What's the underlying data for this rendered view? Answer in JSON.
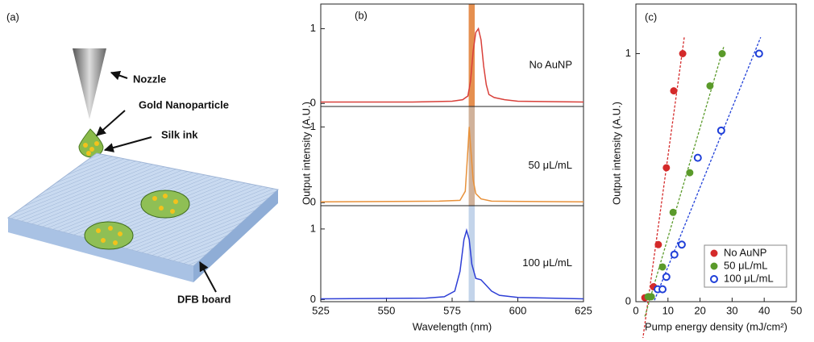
{
  "panel_a": {
    "label": "(a)",
    "nozzle": "Nozzle",
    "particle": "Gold Nanoparticle",
    "ink": "Silk ink",
    "board": "DFB board"
  },
  "chart_data": [
    {
      "type": "line",
      "panel_label": "(b)",
      "y_label": "Output intensity (A.U.)",
      "x": [
        525,
        560,
        575,
        579,
        581,
        582,
        583,
        584,
        585,
        586,
        587,
        588,
        589,
        591,
        595,
        600,
        625
      ],
      "series": [
        {
          "name": "No AuNP",
          "color": "#d9403a",
          "values": [
            0.02,
            0.02,
            0.03,
            0.05,
            0.1,
            0.3,
            0.7,
            0.95,
            1.0,
            0.85,
            0.5,
            0.25,
            0.12,
            0.08,
            0.05,
            0.03,
            0.02
          ]
        }
      ],
      "xlim": [
        525,
        625
      ],
      "ylim": [
        -0.04,
        1.33
      ],
      "yticks": [
        0,
        1
      ],
      "highlight": [
        581.3,
        583.6
      ],
      "highlight_color": "#e07b30"
    },
    {
      "type": "line",
      "x": [
        525,
        570,
        578,
        580,
        581,
        581.5,
        582,
        583,
        584,
        586,
        590,
        625
      ],
      "series": [
        {
          "name": "50 μL/mL",
          "color": "#e8913a",
          "values": [
            0.01,
            0.02,
            0.03,
            0.15,
            0.7,
            1.0,
            0.75,
            0.3,
            0.12,
            0.05,
            0.02,
            0.01
          ]
        }
      ],
      "xlim": [
        525,
        625
      ],
      "ylim": [
        -0.04,
        1.27
      ],
      "yticks": [
        0,
        1
      ],
      "highlight": [
        581.3,
        583.6
      ],
      "highlight_color": "#c8a58a"
    },
    {
      "type": "line",
      "x_label": "Wavelength (nm)",
      "x": [
        525,
        565,
        572,
        576,
        578,
        579.5,
        580.5,
        581.5,
        582.5,
        584,
        586,
        588,
        590,
        593,
        600,
        625
      ],
      "series": [
        {
          "name": "100 μL/mL",
          "color": "#2e3fd6",
          "values": [
            0.01,
            0.02,
            0.04,
            0.12,
            0.4,
            0.85,
            0.98,
            0.85,
            0.5,
            0.3,
            0.28,
            0.2,
            0.12,
            0.06,
            0.03,
            0.01
          ]
        }
      ],
      "xlim": [
        525,
        625
      ],
      "xticks": [
        525,
        550,
        575,
        600,
        625
      ],
      "ylim": [
        -0.03,
        1.33
      ],
      "yticks": [
        0,
        1
      ],
      "highlight": [
        581.3,
        583.6
      ],
      "highlight_color": "#b9cde6"
    },
    {
      "type": "scatter",
      "panel_label": "(c)",
      "x_label": "Pump energy density (mJ/cm²)",
      "y_label": "Output intensity (A.U.)",
      "xlim": [
        0,
        50
      ],
      "xticks": [
        0,
        10,
        20,
        30,
        40,
        50
      ],
      "ylim": [
        0,
        1.2
      ],
      "yticks": [
        0,
        1
      ],
      "legend": "lower right",
      "series": [
        {
          "name": "No AuNP",
          "color": "#d42a2a",
          "marker": "filled",
          "x": [
            2.8,
            5.5,
            7,
            9.5,
            11.8,
            14.6
          ],
          "values": [
            0.016,
            0.06,
            0.23,
            0.54,
            0.85,
            1.0
          ]
        },
        {
          "name": "50 μL/mL",
          "color": "#5a9a2a",
          "marker": "filled",
          "x": [
            3.8,
            4.8,
            8.3,
            11.6,
            16.8,
            23.1,
            26.9
          ],
          "values": [
            0.02,
            0.02,
            0.14,
            0.36,
            0.52,
            0.87,
            1.0
          ]
        },
        {
          "name": "100 μL/mL",
          "color": "#1f3fd8",
          "marker": "open",
          "x": [
            6.8,
            8.3,
            9.5,
            12,
            14.3,
            19.3,
            26.6,
            38.4
          ],
          "values": [
            0.05,
            0.05,
            0.1,
            0.19,
            0.23,
            0.58,
            0.69,
            1.0
          ]
        }
      ]
    }
  ]
}
